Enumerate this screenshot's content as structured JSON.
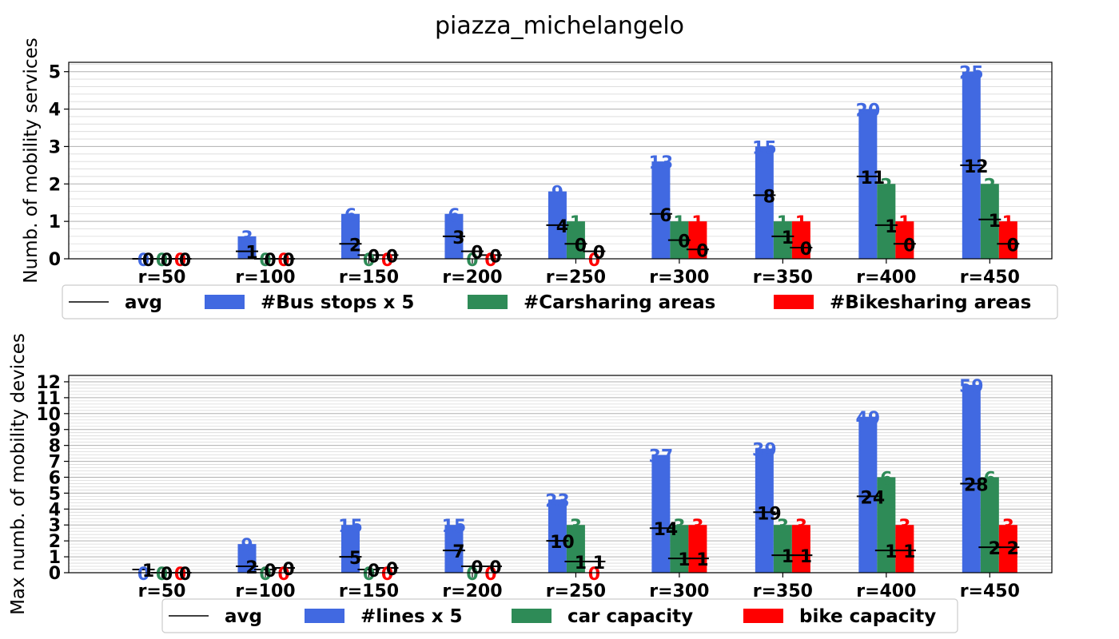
{
  "title": "piazza_michelangelo",
  "colors": {
    "bus": "#4169e1",
    "car": "#2e8b57",
    "bike": "#ff0000",
    "avg": "#000000"
  },
  "chart_data": [
    {
      "type": "bar",
      "ylabel": "Numb. of mobility services",
      "categories": [
        "r=50",
        "r=100",
        "r=150",
        "r=200",
        "r=250",
        "r=300",
        "r=350",
        "r=400",
        "r=450"
      ],
      "ylim": [
        0,
        5.25
      ],
      "yticks": [
        0,
        1,
        2,
        3,
        4,
        5
      ],
      "legend": "below",
      "series": [
        {
          "name": "#Bus stops x 5",
          "values": [
            0,
            0.6,
            1.2,
            1.2,
            1.8,
            2.6,
            3.0,
            4.0,
            5.0
          ],
          "labels": [
            "0",
            "3",
            "6",
            "6",
            "9",
            "13",
            "15",
            "20",
            "25"
          ]
        },
        {
          "name": "#Carsharing areas",
          "values": [
            0,
            0,
            0,
            0,
            1,
            1,
            1,
            2,
            2
          ],
          "labels": [
            "0",
            "0",
            "0",
            "0",
            "1",
            "1",
            "1",
            "2",
            "2"
          ]
        },
        {
          "name": "#Bikesharing areas",
          "values": [
            0,
            0,
            0,
            0,
            0,
            1,
            1,
            1,
            1
          ],
          "labels": [
            "0",
            "0",
            "0",
            "0",
            "0",
            "1",
            "1",
            "1",
            "1"
          ]
        }
      ],
      "avg": {
        "name": "avg",
        "values": [
          [
            0,
            0,
            0
          ],
          [
            0.2,
            0,
            0
          ],
          [
            0.4,
            0.1,
            0.1
          ],
          [
            0.6,
            0.2,
            0.1
          ],
          [
            0.9,
            0.4,
            0.2
          ],
          [
            1.2,
            0.5,
            0.25
          ],
          [
            1.7,
            0.6,
            0.3
          ],
          [
            2.2,
            0.9,
            0.4
          ],
          [
            2.5,
            1.05,
            0.4
          ]
        ],
        "labels": [
          [
            "0",
            "0",
            "0"
          ],
          [
            "1",
            "0",
            "0"
          ],
          [
            "2",
            "0",
            "0"
          ],
          [
            "3",
            "0",
            "0"
          ],
          [
            "4",
            "0",
            "0"
          ],
          [
            "6",
            "0",
            "0"
          ],
          [
            "8",
            "1",
            "0"
          ],
          [
            "11",
            "1",
            "0"
          ],
          [
            "12",
            "1",
            "0"
          ]
        ]
      }
    },
    {
      "type": "bar",
      "ylabel": "Max numb. of mobility devices",
      "categories": [
        "r=50",
        "r=100",
        "r=150",
        "r=200",
        "r=250",
        "r=300",
        "r=350",
        "r=400",
        "r=450"
      ],
      "ylim": [
        0,
        12.4
      ],
      "yticks": [
        0,
        1,
        2,
        3,
        4,
        5,
        6,
        7,
        8,
        9,
        10,
        11,
        12
      ],
      "legend": "below",
      "series": [
        {
          "name": "#lines x 5",
          "values": [
            0,
            1.8,
            3.0,
            3.0,
            4.6,
            7.4,
            7.8,
            9.8,
            11.8
          ],
          "labels": [
            "0",
            "9",
            "15",
            "15",
            "23",
            "37",
            "39",
            "49",
            "59"
          ]
        },
        {
          "name": "car capacity",
          "values": [
            0,
            0,
            0,
            0,
            3,
            3,
            3,
            6,
            6
          ],
          "labels": [
            "0",
            "0",
            "0",
            "0",
            "3",
            "3",
            "3",
            "6",
            "6"
          ]
        },
        {
          "name": "bike capacity",
          "values": [
            0,
            0,
            0,
            0,
            0,
            3,
            3,
            3,
            3
          ],
          "labels": [
            "0",
            "0",
            "0",
            "0",
            "0",
            "3",
            "3",
            "3",
            "3"
          ]
        }
      ],
      "avg": {
        "name": "avg",
        "values": [
          [
            0.2,
            0,
            0
          ],
          [
            0.4,
            0.2,
            0.3
          ],
          [
            1.0,
            0.2,
            0.3
          ],
          [
            1.4,
            0.4,
            0.4
          ],
          [
            2.0,
            0.7,
            0.7
          ],
          [
            2.8,
            0.9,
            0.9
          ],
          [
            3.8,
            1.1,
            1.1
          ],
          [
            4.8,
            1.4,
            1.4
          ],
          [
            5.6,
            1.6,
            1.6
          ]
        ],
        "labels": [
          [
            "1",
            "0",
            "0"
          ],
          [
            "2",
            "0",
            "0"
          ],
          [
            "5",
            "0",
            "0"
          ],
          [
            "7",
            "0",
            "0"
          ],
          [
            "10",
            "1",
            "1"
          ],
          [
            "14",
            "1",
            "1"
          ],
          [
            "19",
            "1",
            "1"
          ],
          [
            "24",
            "1",
            "1"
          ],
          [
            "28",
            "2",
            "2"
          ]
        ]
      }
    }
  ]
}
